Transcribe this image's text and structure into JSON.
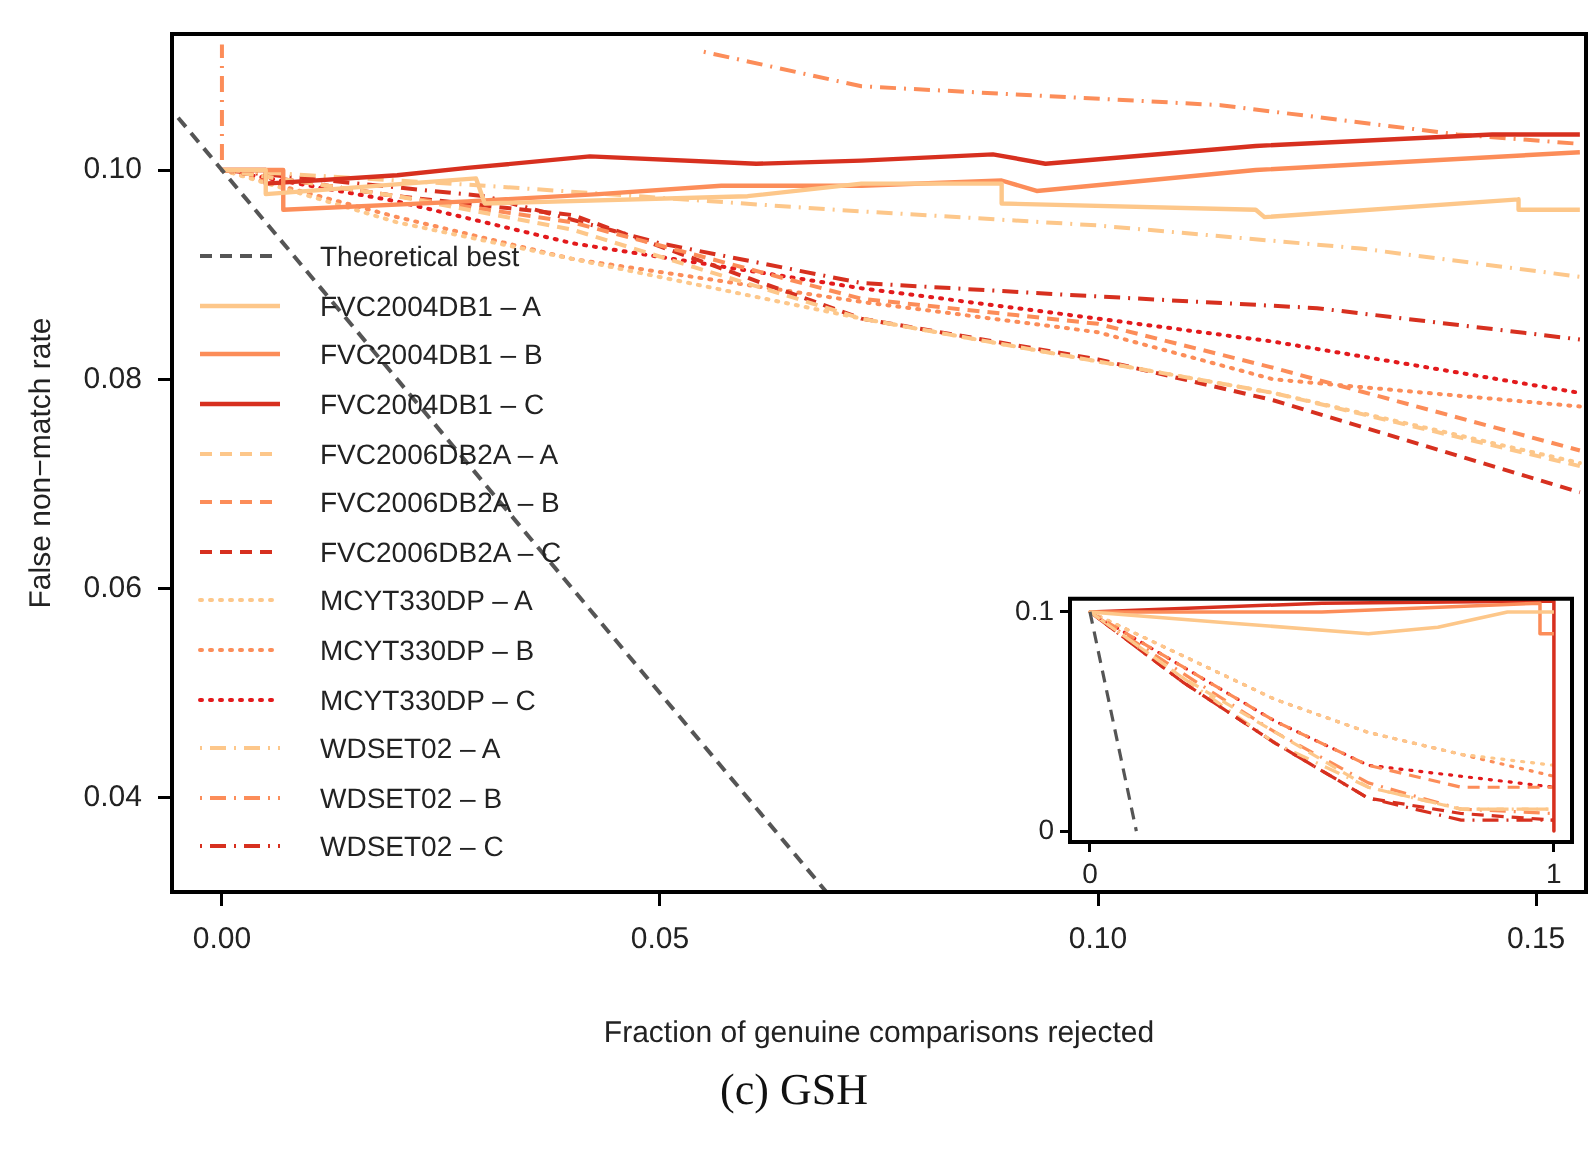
{
  "chart_data": [
    {
      "type": "line",
      "title": "(c)  GSH",
      "xlabel": "Fraction of genuine comparisons rejected",
      "ylabel": "False non−match rate",
      "xlim": [
        -0.0057,
        0.1557
      ],
      "ylim": [
        0.031,
        0.113
      ],
      "xticks": [
        {
          "value": 0,
          "label": "0.00"
        },
        {
          "value": 0.05,
          "label": "0.05"
        },
        {
          "value": 0.1,
          "label": "0.10"
        },
        {
          "value": 0.15,
          "label": "0.15"
        }
      ],
      "yticks": [
        0.04,
        0.06,
        0.08,
        {
          "value": 0.1,
          "label": "0.10"
        }
      ],
      "grid": false,
      "legend": "left",
      "marker": "none",
      "series": [
        {
          "name": "Theoretical best",
          "color": "#555555",
          "line_style": "dashed",
          "x": [
            -0.005,
            0.069
          ],
          "values": [
            0.105,
            0.031
          ]
        },
        {
          "name": "FVC2004DB1 – A",
          "color": "#fdc78a",
          "line_style": "solid",
          "x": [
            0,
            0.005,
            0.005,
            0.029,
            0.03,
            0.06,
            0.073,
            0.089,
            0.089,
            0.118,
            0.119,
            0.148,
            0.148,
            0.155
          ],
          "values": [
            0.1,
            0.1,
            0.0977,
            0.0992,
            0.0968,
            0.0975,
            0.0987,
            0.0987,
            0.0968,
            0.0962,
            0.0955,
            0.0972,
            0.0962,
            0.0962
          ]
        },
        {
          "name": "FVC2004DB1 – B",
          "color": "#fc8d59",
          "line_style": "solid",
          "x": [
            0,
            0.007,
            0.007,
            0.028,
            0.043,
            0.057,
            0.073,
            0.089,
            0.093,
            0.118,
            0.155
          ],
          "values": [
            0.1,
            0.1,
            0.0962,
            0.097,
            0.0977,
            0.0985,
            0.0985,
            0.099,
            0.098,
            0.1,
            0.1017
          ]
        },
        {
          "name": "FVC2004DB1 – C",
          "color": "#d7301f",
          "line_style": "solid",
          "x": [
            0,
            0.005,
            0.005,
            0.02,
            0.028,
            0.042,
            0.061,
            0.073,
            0.088,
            0.094,
            0.118,
            0.145,
            0.155
          ],
          "values": [
            0.1,
            0.1,
            0.0987,
            0.0995,
            0.1002,
            0.1013,
            0.1006,
            0.1009,
            0.1015,
            0.1006,
            0.1023,
            0.1034,
            0.1034
          ]
        },
        {
          "name": "FVC2006DB2A – A",
          "color": "#fdc78a",
          "line_style": "dashed",
          "x": [
            0,
            0.02,
            0.04,
            0.073,
            0.1,
            0.12,
            0.155
          ],
          "values": [
            0.1,
            0.0975,
            0.0943,
            0.0858,
            0.0817,
            0.0787,
            0.0717
          ]
        },
        {
          "name": "FVC2006DB2A – B",
          "color": "#fc8d59",
          "line_style": "dashed",
          "x": [
            0,
            0.02,
            0.04,
            0.073,
            0.1,
            0.12,
            0.155
          ],
          "values": [
            0.1,
            0.0975,
            0.095,
            0.0877,
            0.0853,
            0.0811,
            0.0732
          ]
        },
        {
          "name": "FVC2006DB2A – C",
          "color": "#d7301f",
          "line_style": "dashed",
          "x": [
            0,
            0.02,
            0.04,
            0.073,
            0.1,
            0.12,
            0.155
          ],
          "values": [
            0.1,
            0.0975,
            0.0957,
            0.0858,
            0.0819,
            0.078,
            0.0692
          ]
        },
        {
          "name": "MCYT330DP – A",
          "color": "#fdc78a",
          "line_style": "dotted",
          "x": [
            0,
            0.02,
            0.04,
            0.073,
            0.1,
            0.12,
            0.155
          ],
          "values": [
            0.1,
            0.095,
            0.0915,
            0.0858,
            0.0817,
            0.0787,
            0.072
          ]
        },
        {
          "name": "MCYT330DP – B",
          "color": "#fc8d59",
          "line_style": "dotted",
          "x": [
            0,
            0.02,
            0.04,
            0.073,
            0.1,
            0.12,
            0.155
          ],
          "values": [
            0.1,
            0.0955,
            0.0915,
            0.0874,
            0.0845,
            0.08,
            0.0774
          ]
        },
        {
          "name": "MCYT330DP – C",
          "color": "#e31a1c",
          "line_style": "dotted",
          "x": [
            0,
            0.02,
            0.04,
            0.073,
            0.1,
            0.12,
            0.155
          ],
          "values": [
            0.1,
            0.097,
            0.093,
            0.0887,
            0.0858,
            0.0836,
            0.0787
          ]
        },
        {
          "name": "WDSET02 – A",
          "color": "#fdc78a",
          "line_style": "dashdot",
          "x": [
            0,
            0.03,
            0.07,
            0.1,
            0.13,
            0.155
          ],
          "values": [
            0.1,
            0.0985,
            0.0962,
            0.0947,
            0.0925,
            0.0898
          ]
        },
        {
          "name": "WDSET02 – B",
          "color": "#fc8d59",
          "line_style": "dashdot",
          "x": [
            0,
            0,
            0.02,
            0.055,
            0.073,
            0.114,
            0.141,
            0.155
          ],
          "values": [
            0.1,
            0.112,
            null,
            0.1113,
            0.108,
            0.1062,
            0.1034,
            0.1025
          ]
        },
        {
          "name": "WDSET02 – C",
          "color": "#d7301f",
          "line_style": "dashdot",
          "x": [
            0,
            0.03,
            0.05,
            0.073,
            0.096,
            0.125,
            0.155
          ],
          "values": [
            0.1,
            0.0975,
            0.093,
            0.0892,
            0.0881,
            0.0868,
            0.0838
          ]
        }
      ]
    },
    {
      "type": "line",
      "xlim": [
        -0.043,
        1.039
      ],
      "ylim": [
        -0.005,
        0.106
      ],
      "xticks": [
        0,
        1
      ],
      "yticks": [
        0,
        0.1
      ],
      "grid": false,
      "marker": "none",
      "series": [
        {
          "color": "#555555",
          "line_style": "dashed",
          "x": [
            0,
            0.1
          ],
          "values": [
            0.1,
            0
          ]
        },
        {
          "color": "#fdc78a",
          "line_style": "solid",
          "x": [
            0,
            0.3,
            0.6,
            0.75,
            0.9,
            1
          ],
          "values": [
            0.1,
            0.095,
            0.09,
            0.093,
            0.1,
            0.1
          ]
        },
        {
          "color": "#fc8d59",
          "line_style": "solid",
          "x": [
            0,
            0.5,
            0.97,
            0.97,
            1
          ],
          "values": [
            0.1,
            0.1,
            0.104,
            0.09,
            0.09
          ]
        },
        {
          "color": "#d7301f",
          "line_style": "solid",
          "x": [
            0,
            0.5,
            1,
            1
          ],
          "values": [
            0.1,
            0.104,
            0.105,
            0
          ]
        },
        {
          "color": "#fdc78a",
          "line_style": "dashed",
          "x": [
            0,
            0.2,
            0.4,
            0.6,
            0.8,
            1
          ],
          "values": [
            0.1,
            0.07,
            0.045,
            0.02,
            0.01,
            0.01
          ]
        },
        {
          "color": "#fc8d59",
          "line_style": "dashed",
          "x": [
            0,
            0.2,
            0.4,
            0.6,
            0.8,
            1
          ],
          "values": [
            0.1,
            0.075,
            0.05,
            0.03,
            0.02,
            0.02
          ]
        },
        {
          "color": "#d7301f",
          "line_style": "dashed",
          "x": [
            0,
            0.2,
            0.4,
            0.6,
            0.8,
            1
          ],
          "values": [
            0.1,
            0.068,
            0.04,
            0.015,
            0.008,
            0.005
          ]
        },
        {
          "color": "#fdc78a",
          "line_style": "dotted",
          "x": [
            0,
            0.2,
            0.4,
            0.6,
            0.8,
            1
          ],
          "values": [
            0.1,
            0.08,
            0.06,
            0.045,
            0.035,
            0.03
          ]
        },
        {
          "color": "#fc8d59",
          "line_style": "dotted",
          "x": [
            0,
            0.2,
            0.4,
            0.6,
            0.8,
            1
          ],
          "values": [
            0.1,
            0.08,
            0.06,
            0.045,
            0.035,
            0.025
          ]
        },
        {
          "color": "#e31a1c",
          "line_style": "dotted",
          "x": [
            0,
            0.2,
            0.4,
            0.6,
            0.8,
            1
          ],
          "values": [
            0.1,
            0.075,
            0.05,
            0.03,
            0.025,
            0.02
          ]
        },
        {
          "color": "#fdc78a",
          "line_style": "dashdot",
          "x": [
            0,
            0.2,
            0.4,
            0.6,
            0.8,
            1
          ],
          "values": [
            0.1,
            0.07,
            0.04,
            0.02,
            0.01,
            0.01
          ]
        },
        {
          "color": "#fc8d59",
          "line_style": "dashdot",
          "x": [
            0,
            0.2,
            0.4,
            0.6,
            0.8,
            1
          ],
          "values": [
            0.1,
            0.072,
            0.045,
            0.022,
            0.01,
            0.008
          ]
        },
        {
          "color": "#d7301f",
          "line_style": "dashdot",
          "x": [
            0,
            0.2,
            0.4,
            0.6,
            0.8,
            1
          ],
          "values": [
            0.1,
            0.068,
            0.04,
            0.015,
            0.005,
            0.005
          ]
        }
      ]
    }
  ]
}
